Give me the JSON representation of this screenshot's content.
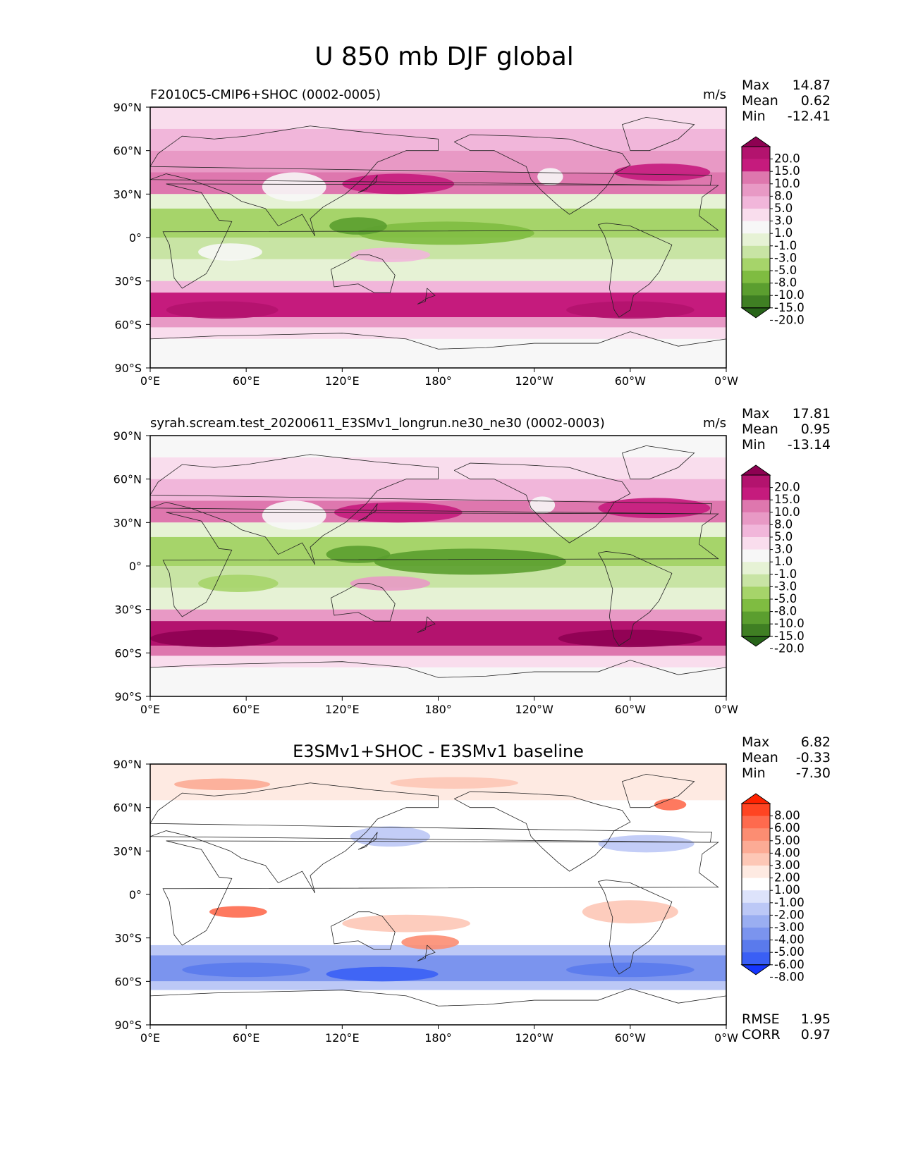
{
  "chart_data": {
    "type": "heatmap",
    "title": "U 850 mb DJF global",
    "x_ticks": [
      "0°E",
      "60°E",
      "120°E",
      "180°",
      "120°W",
      "60°W",
      "0°W"
    ],
    "y_ticks": [
      "90°N",
      "60°N",
      "30°N",
      "0°",
      "30°S",
      "60°S",
      "90°S"
    ],
    "xlim": [
      0,
      360
    ],
    "ylim": [
      -90,
      90
    ],
    "panels": [
      {
        "name": "test",
        "title": "F2010C5-CMIP6+SHOC (0002-0005)",
        "centered_title": "",
        "units": "m/s",
        "stats": [
          {
            "label": "Max",
            "value": "14.87"
          },
          {
            "label": "Mean",
            "value": "0.62"
          },
          {
            "label": "Min",
            "value": "-12.41"
          }
        ],
        "colorbar_levels": [
          "20.0",
          "15.0",
          "10.0",
          "8.0",
          "5.0",
          "3.0",
          "1.0",
          "-1.0",
          "-3.0",
          "-5.0",
          "-8.0",
          "-10.0",
          "-15.0",
          "-20.0"
        ],
        "colors": [
          "#8e0152",
          "#b3136e",
          "#c51b7d",
          "#de77ae",
          "#e899c5",
          "#f1b6da",
          "#f9dded",
          "#f7f7f7",
          "#e6f2d5",
          "#c8e4a4",
          "#a6d46a",
          "#7fbc41",
          "#5b9e2f",
          "#3f7f23",
          "#276419"
        ],
        "bands": [
          {
            "lat_top": 90,
            "lat_bottom": 75,
            "level": 6
          },
          {
            "lat_top": 75,
            "lat_bottom": 60,
            "level": 5
          },
          {
            "lat_top": 60,
            "lat_bottom": 45,
            "level": 4
          },
          {
            "lat_top": 45,
            "lat_bottom": 30,
            "level": 3
          },
          {
            "lat_top": 30,
            "lat_bottom": 20,
            "level": 8
          },
          {
            "lat_top": 20,
            "lat_bottom": 0,
            "level": 10
          },
          {
            "lat_top": 0,
            "lat_bottom": -15,
            "level": 9
          },
          {
            "lat_top": -15,
            "lat_bottom": -30,
            "level": 8
          },
          {
            "lat_top": -30,
            "lat_bottom": -38,
            "level": 5
          },
          {
            "lat_top": -38,
            "lat_bottom": -55,
            "level": 2
          },
          {
            "lat_top": -55,
            "lat_bottom": -62,
            "level": 4
          },
          {
            "lat_top": -62,
            "lat_bottom": -70,
            "level": 6
          },
          {
            "lat_top": -70,
            "lat_bottom": -90,
            "level": 7
          }
        ],
        "blobs": [
          {
            "lon": 155,
            "lat": 37,
            "rlon": 35,
            "rlat": 7,
            "level": 2
          },
          {
            "lon": 320,
            "lat": 45,
            "rlon": 30,
            "rlat": 6,
            "level": 2
          },
          {
            "lon": 90,
            "lat": 35,
            "rlon": 20,
            "rlat": 10,
            "level": 7
          },
          {
            "lon": 250,
            "lat": 42,
            "rlon": 8,
            "rlat": 6,
            "level": 7
          },
          {
            "lon": 185,
            "lat": 3,
            "rlon": 55,
            "rlat": 8,
            "level": 11
          },
          {
            "lon": 130,
            "lat": 8,
            "rlon": 18,
            "rlat": 6,
            "level": 12
          },
          {
            "lon": 45,
            "lat": -50,
            "rlon": 35,
            "rlat": 6,
            "level": 1
          },
          {
            "lon": 300,
            "lat": -50,
            "rlon": 40,
            "rlat": 6,
            "level": 1
          },
          {
            "lon": 50,
            "lat": -10,
            "rlon": 20,
            "rlat": 6,
            "level": 7
          },
          {
            "lon": 150,
            "lat": -12,
            "rlon": 25,
            "rlat": 5,
            "level": 5
          }
        ]
      },
      {
        "name": "reference",
        "title": "syrah.scream.test_20200611_E3SMv1_longrun.ne30_ne30 (0002-0003)",
        "centered_title": "",
        "units": "m/s",
        "stats": [
          {
            "label": "Max",
            "value": "17.81"
          },
          {
            "label": "Mean",
            "value": "0.95"
          },
          {
            "label": "Min",
            "value": "-13.14"
          }
        ],
        "colorbar_levels": [
          "20.0",
          "15.0",
          "10.0",
          "8.0",
          "5.0",
          "3.0",
          "1.0",
          "-1.0",
          "-3.0",
          "-5.0",
          "-8.0",
          "-10.0",
          "-15.0",
          "-20.0"
        ],
        "colors": [
          "#8e0152",
          "#b3136e",
          "#c51b7d",
          "#de77ae",
          "#e899c5",
          "#f1b6da",
          "#f9dded",
          "#f7f7f7",
          "#e6f2d5",
          "#c8e4a4",
          "#a6d46a",
          "#7fbc41",
          "#5b9e2f",
          "#3f7f23",
          "#276419"
        ],
        "bands": [
          {
            "lat_top": 90,
            "lat_bottom": 75,
            "level": 7
          },
          {
            "lat_top": 75,
            "lat_bottom": 60,
            "level": 6
          },
          {
            "lat_top": 60,
            "lat_bottom": 45,
            "level": 5
          },
          {
            "lat_top": 45,
            "lat_bottom": 30,
            "level": 3
          },
          {
            "lat_top": 30,
            "lat_bottom": 20,
            "level": 8
          },
          {
            "lat_top": 20,
            "lat_bottom": 0,
            "level": 10
          },
          {
            "lat_top": 0,
            "lat_bottom": -15,
            "level": 9
          },
          {
            "lat_top": -15,
            "lat_bottom": -30,
            "level": 8
          },
          {
            "lat_top": -30,
            "lat_bottom": -38,
            "level": 4
          },
          {
            "lat_top": -38,
            "lat_bottom": -55,
            "level": 1
          },
          {
            "lat_top": -55,
            "lat_bottom": -62,
            "level": 3
          },
          {
            "lat_top": -62,
            "lat_bottom": -70,
            "level": 6
          },
          {
            "lat_top": -70,
            "lat_bottom": -90,
            "level": 7
          }
        ],
        "blobs": [
          {
            "lon": 155,
            "lat": 37,
            "rlon": 40,
            "rlat": 7,
            "level": 2
          },
          {
            "lon": 315,
            "lat": 40,
            "rlon": 35,
            "rlat": 7,
            "level": 2
          },
          {
            "lon": 90,
            "lat": 35,
            "rlon": 20,
            "rlat": 10,
            "level": 7
          },
          {
            "lon": 245,
            "lat": 42,
            "rlon": 8,
            "rlat": 6,
            "level": 7
          },
          {
            "lon": 200,
            "lat": 3,
            "rlon": 60,
            "rlat": 9,
            "level": 12
          },
          {
            "lon": 130,
            "lat": 8,
            "rlon": 20,
            "rlat": 6,
            "level": 12
          },
          {
            "lon": 40,
            "lat": -50,
            "rlon": 40,
            "rlat": 6,
            "level": 0
          },
          {
            "lon": 300,
            "lat": -50,
            "rlon": 45,
            "rlat": 6,
            "level": 0
          },
          {
            "lon": 55,
            "lat": -12,
            "rlon": 25,
            "rlat": 6,
            "level": 10
          },
          {
            "lon": 150,
            "lat": -12,
            "rlon": 25,
            "rlat": 5,
            "level": 4
          }
        ]
      },
      {
        "name": "diff",
        "title": "",
        "centered_title": "E3SMv1+SHOC - E3SMv1 baseline",
        "units": "",
        "stats": [
          {
            "label": "Max",
            "value": "6.82"
          },
          {
            "label": "Mean",
            "value": "-0.33"
          },
          {
            "label": "Min",
            "value": "-7.30"
          }
        ],
        "colorbar_levels": [
          "8.00",
          "6.00",
          "5.00",
          "4.00",
          "3.00",
          "2.00",
          "1.00",
          "-1.00",
          "-2.00",
          "-3.00",
          "-4.00",
          "-5.00",
          "-6.00",
          "-8.00"
        ],
        "colors": [
          "#ff2200",
          "#ff4422",
          "#fe6a4e",
          "#fc8d72",
          "#fcab95",
          "#fdc7b6",
          "#feeae2",
          "#ffffff",
          "#dde3fb",
          "#bcc8f6",
          "#9aaef1",
          "#7b94ee",
          "#5a7aec",
          "#3a5ff5",
          "#1535ff"
        ],
        "bands": [
          {
            "lat_top": 90,
            "lat_bottom": 65,
            "level": 6
          },
          {
            "lat_top": 65,
            "lat_bottom": 25,
            "level": 7
          },
          {
            "lat_top": 25,
            "lat_bottom": -35,
            "level": 7
          },
          {
            "lat_top": -35,
            "lat_bottom": -42,
            "level": 9
          },
          {
            "lat_top": -42,
            "lat_bottom": -60,
            "level": 11
          },
          {
            "lat_top": -60,
            "lat_bottom": -66,
            "level": 9
          },
          {
            "lat_top": -66,
            "lat_bottom": -90,
            "level": 7
          }
        ],
        "blobs": [
          {
            "lon": 45,
            "lat": 76,
            "rlon": 30,
            "rlat": 4,
            "level": 4
          },
          {
            "lon": 190,
            "lat": 77,
            "rlon": 40,
            "rlat": 4,
            "level": 5
          },
          {
            "lon": 325,
            "lat": 62,
            "rlon": 10,
            "rlat": 4,
            "level": 2
          },
          {
            "lon": 150,
            "lat": 40,
            "rlon": 25,
            "rlat": 7,
            "level": 9
          },
          {
            "lon": 310,
            "lat": 35,
            "rlon": 30,
            "rlat": 6,
            "level": 9
          },
          {
            "lon": 55,
            "lat": -12,
            "rlon": 18,
            "rlat": 4,
            "level": 2
          },
          {
            "lon": 175,
            "lat": -33,
            "rlon": 18,
            "rlat": 5,
            "level": 3
          },
          {
            "lon": 300,
            "lat": -12,
            "rlon": 30,
            "rlat": 8,
            "level": 5
          },
          {
            "lon": 160,
            "lat": -20,
            "rlon": 40,
            "rlat": 6,
            "level": 5
          },
          {
            "lon": 145,
            "lat": -55,
            "rlon": 35,
            "rlat": 5,
            "level": 13
          },
          {
            "lon": 60,
            "lat": -52,
            "rlon": 40,
            "rlat": 5,
            "level": 12
          },
          {
            "lon": 300,
            "lat": -52,
            "rlon": 40,
            "rlat": 5,
            "level": 12
          }
        ],
        "extra_stats": [
          {
            "label": "RMSE",
            "value": "1.95"
          },
          {
            "label": "CORR",
            "value": "0.97"
          }
        ]
      }
    ]
  }
}
